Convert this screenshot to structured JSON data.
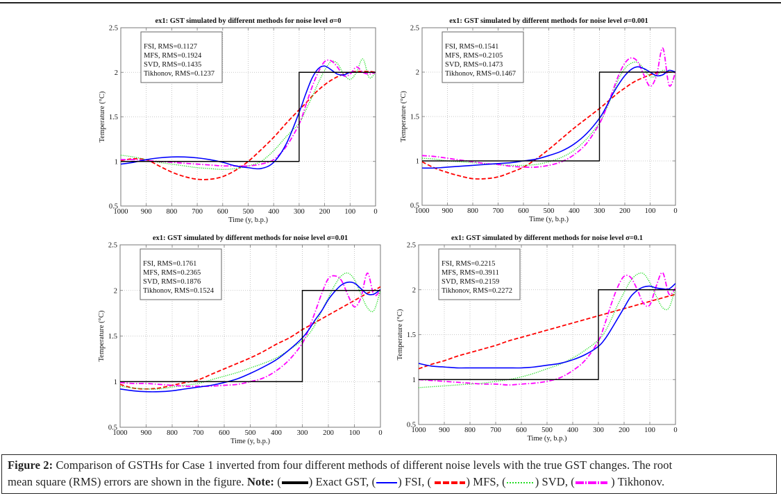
{
  "caption": {
    "figure_label": "Figure 2:",
    "line1_text": " Comparison of GSTHs for Case 1 inverted from four different methods of different noise levels with the true GST changes. The root",
    "line2_text": "mean square (RMS) errors are shown in the figure. ",
    "note_label": "Note:",
    "legend": [
      {
        "key": "exact",
        "label": "Exact GST,",
        "color": "#000000",
        "style": "solid"
      },
      {
        "key": "fsi",
        "label": "FSI,",
        "color": "#0000ff",
        "style": "solid"
      },
      {
        "key": "mfs",
        "label": "MFS,",
        "color": "#ff0000",
        "style": "dashed"
      },
      {
        "key": "svd",
        "label": "SVD,",
        "color": "#00dd00",
        "style": "dotted"
      },
      {
        "key": "tik",
        "label": "Tikhonov.",
        "color": "#ff00ff",
        "style": "dashdot"
      }
    ]
  },
  "colors": {
    "exact": "#000000",
    "fsi": "#0000ff",
    "mfs": "#ff0000",
    "svd": "#22dd22",
    "tik": "#ff00ff",
    "grid": "#b8b8b8",
    "axis": "#777777"
  },
  "chart_data": [
    {
      "type": "line",
      "title": "ex1: GST simulated by different methods for noise level σ=0",
      "xlabel": "Time (y, b.p.)",
      "ylabel": "Temperature (°C)",
      "xlim": [
        1000,
        0
      ],
      "ylim": [
        0.5,
        2.5
      ],
      "xticks": [
        "1000",
        "900",
        "800",
        "700",
        "600",
        "500",
        "400",
        "300",
        "200",
        "100",
        "0"
      ],
      "yticks": [
        "0.5",
        "1",
        "1.5",
        "2",
        "2.5"
      ],
      "grid": true,
      "rms_box": [
        "FSI,  RMS=0.1127",
        "MFS,  RMS=0.1924",
        "SVD,  RMS=0.1435",
        "Tikhonov,  RMS=0.1237"
      ],
      "rms_box_position": "top-left",
      "x": [
        1000,
        950,
        900,
        850,
        800,
        750,
        700,
        650,
        600,
        550,
        500,
        450,
        400,
        350,
        300,
        275,
        250,
        225,
        200,
        175,
        150,
        125,
        100,
        75,
        50,
        25,
        0
      ],
      "series": [
        {
          "name": "Exact GST",
          "key": "exact",
          "x": [
            1000,
            300,
            300,
            0
          ],
          "values": [
            1,
            1,
            2,
            2
          ]
        },
        {
          "name": "FSI",
          "key": "fsi",
          "values": [
            0.97,
            0.99,
            1.02,
            1.04,
            1.05,
            1.05,
            1.04,
            1.02,
            0.99,
            0.95,
            0.93,
            0.92,
            0.99,
            1.2,
            1.55,
            1.75,
            1.93,
            2.04,
            2.07,
            2.03,
            1.98,
            1.97,
            2.0,
            2.0,
            2.0,
            2.0,
            2.0
          ]
        },
        {
          "name": "MFS",
          "key": "mfs",
          "values": [
            1.01,
            1.03,
            1.02,
            0.95,
            0.88,
            0.83,
            0.8,
            0.8,
            0.83,
            0.9,
            1.0,
            1.13,
            1.27,
            1.43,
            1.58,
            1.65,
            1.73,
            1.8,
            1.86,
            1.91,
            1.95,
            1.98,
            2.0,
            2.01,
            2.01,
            2.01,
            2.0
          ]
        },
        {
          "name": "SVD",
          "key": "svd",
          "values": [
            1.07,
            1.05,
            1.02,
            0.99,
            0.97,
            0.95,
            0.93,
            0.92,
            0.91,
            0.92,
            0.95,
            1.0,
            1.12,
            1.28,
            1.43,
            1.57,
            1.72,
            1.88,
            2.02,
            2.12,
            2.1,
            1.98,
            1.92,
            2.0,
            2.15,
            1.94,
            2.0
          ]
        },
        {
          "name": "Tikhonov",
          "key": "tik",
          "values": [
            1.02,
            1.02,
            1.01,
            1.0,
            0.99,
            0.98,
            0.97,
            0.96,
            0.95,
            0.95,
            0.95,
            0.97,
            1.02,
            1.17,
            1.42,
            1.62,
            1.83,
            2.0,
            2.12,
            2.13,
            2.06,
            1.96,
            1.98,
            2.06,
            2.0,
            1.98,
            2.0
          ]
        }
      ]
    },
    {
      "type": "line",
      "title": "ex1: GST simulated by different methods for noise level σ=0.001",
      "xlabel": "Time (y, b.p.)",
      "ylabel": "Temperature (°C)",
      "xlim": [
        1000,
        0
      ],
      "ylim": [
        0.5,
        2.5
      ],
      "xticks": [
        "1000",
        "900",
        "800",
        "700",
        "600",
        "500",
        "400",
        "300",
        "200",
        "100",
        "0"
      ],
      "yticks": [
        "0.5",
        "1",
        "1.5",
        "2",
        "2.5"
      ],
      "grid": true,
      "rms_box": [
        "FSI,  RMS=0.1541",
        "MFS,  RMS=0.2105",
        "SVD,  RMS=0.1473",
        "Tikhonov,  RMS=0.1467"
      ],
      "rms_box_position": "top-left",
      "x": [
        1000,
        950,
        900,
        850,
        800,
        750,
        700,
        650,
        600,
        550,
        500,
        450,
        400,
        350,
        300,
        275,
        250,
        225,
        200,
        175,
        150,
        125,
        100,
        75,
        50,
        25,
        0
      ],
      "series": [
        {
          "name": "Exact GST",
          "key": "exact",
          "x": [
            1000,
            300,
            300,
            0
          ],
          "values": [
            1,
            1,
            2,
            2
          ]
        },
        {
          "name": "FSI",
          "key": "fsi",
          "values": [
            0.92,
            0.92,
            0.93,
            0.94,
            0.95,
            0.96,
            0.97,
            0.98,
            1.0,
            1.02,
            1.06,
            1.11,
            1.19,
            1.31,
            1.48,
            1.6,
            1.74,
            1.86,
            1.96,
            2.03,
            2.06,
            2.04,
            2.0,
            1.96,
            1.97,
            2.02,
            2.0
          ]
        },
        {
          "name": "MFS",
          "key": "mfs",
          "values": [
            0.99,
            0.92,
            0.87,
            0.83,
            0.8,
            0.8,
            0.82,
            0.87,
            0.93,
            1.02,
            1.13,
            1.25,
            1.37,
            1.48,
            1.59,
            1.65,
            1.71,
            1.77,
            1.82,
            1.87,
            1.91,
            1.94,
            1.97,
            1.99,
            2.0,
            2.0,
            2.0
          ]
        },
        {
          "name": "SVD",
          "key": "svd",
          "values": [
            1.03,
            1.02,
            1.0,
            0.99,
            0.98,
            0.97,
            0.96,
            0.95,
            0.95,
            0.96,
            0.99,
            1.04,
            1.12,
            1.25,
            1.43,
            1.57,
            1.74,
            1.92,
            2.04,
            2.1,
            2.11,
            2.04,
            1.95,
            1.96,
            2.02,
            2.0,
            2.0
          ]
        },
        {
          "name": "Tikhonov",
          "key": "tik",
          "values": [
            1.06,
            1.05,
            1.03,
            1.01,
            0.99,
            0.97,
            0.96,
            0.94,
            0.93,
            0.93,
            0.95,
            0.99,
            1.07,
            1.2,
            1.42,
            1.58,
            1.77,
            1.96,
            2.1,
            2.16,
            2.12,
            1.97,
            1.84,
            1.96,
            2.27,
            1.85,
            2.0
          ]
        }
      ]
    },
    {
      "type": "line",
      "title": "ex1: GST simulated by different methods for noise level σ=0.01",
      "xlabel": "Time (y, b.p.)",
      "ylabel": "Temperature (°C)",
      "xlim": [
        1000,
        0
      ],
      "ylim": [
        0.5,
        2.5
      ],
      "xticks": [
        "1000",
        "900",
        "800",
        "700",
        "600",
        "500",
        "400",
        "300",
        "200",
        "100",
        "0"
      ],
      "yticks": [
        "0.5",
        "1",
        "1.5",
        "2",
        "2.5"
      ],
      "grid": true,
      "rms_box": [
        "FSI,  RMS=0.1761",
        "MFS,  RMS=0.2365",
        "SVD,  RMS=0.1876",
        "Tikhonov,  RMS=0.1524"
      ],
      "rms_box_position": "top-left",
      "x": [
        1000,
        950,
        900,
        850,
        800,
        750,
        700,
        650,
        600,
        550,
        500,
        450,
        400,
        350,
        300,
        275,
        250,
        225,
        200,
        175,
        150,
        125,
        100,
        75,
        50,
        25,
        0
      ],
      "series": [
        {
          "name": "Exact GST",
          "key": "exact",
          "x": [
            1000,
            300,
            300,
            0
          ],
          "values": [
            1,
            1,
            2,
            2
          ]
        },
        {
          "name": "FSI",
          "key": "fsi",
          "values": [
            0.92,
            0.9,
            0.89,
            0.89,
            0.9,
            0.92,
            0.94,
            0.96,
            0.99,
            1.03,
            1.09,
            1.16,
            1.24,
            1.35,
            1.48,
            1.57,
            1.68,
            1.78,
            1.9,
            1.99,
            2.06,
            2.09,
            2.08,
            2.02,
            1.96,
            1.96,
            2.01
          ]
        },
        {
          "name": "MFS",
          "key": "mfs",
          "values": [
            0.97,
            0.93,
            0.92,
            0.93,
            0.96,
            0.99,
            1.02,
            1.08,
            1.14,
            1.2,
            1.26,
            1.33,
            1.41,
            1.48,
            1.57,
            1.61,
            1.65,
            1.69,
            1.73,
            1.77,
            1.81,
            1.85,
            1.89,
            1.93,
            1.97,
            2.0,
            2.04
          ]
        },
        {
          "name": "SVD",
          "key": "svd",
          "values": [
            0.95,
            0.93,
            0.92,
            0.92,
            0.94,
            0.96,
            0.98,
            1.02,
            1.06,
            1.1,
            1.15,
            1.2,
            1.26,
            1.35,
            1.45,
            1.52,
            1.63,
            1.78,
            1.92,
            2.06,
            2.16,
            2.19,
            2.12,
            1.96,
            1.81,
            1.78,
            2.0
          ]
        },
        {
          "name": "Tikhonov",
          "key": "tik",
          "values": [
            0.99,
            0.98,
            0.98,
            0.97,
            0.96,
            0.95,
            0.95,
            0.95,
            0.96,
            0.97,
            1.0,
            1.04,
            1.12,
            1.24,
            1.42,
            1.58,
            1.77,
            1.97,
            2.13,
            2.16,
            2.11,
            1.95,
            1.82,
            1.92,
            2.19,
            1.95,
            2.0
          ]
        }
      ]
    },
    {
      "type": "line",
      "title": "ex1: GST simulated by different methods for noise level σ=0.1",
      "xlabel": "Time (y, b.p.)",
      "ylabel": "Temperature (°C)",
      "xlim": [
        1000,
        0
      ],
      "ylim": [
        0.5,
        2.5
      ],
      "xticks": [
        "1000",
        "900",
        "800",
        "700",
        "600",
        "500",
        "400",
        "300",
        "200",
        "100",
        "0"
      ],
      "yticks": [
        "0.5",
        "1",
        "1.5",
        "2",
        "2.5"
      ],
      "grid": true,
      "rms_box": [
        "FSI,  RMS=0.2215",
        "MFS,  RMS=0.3911",
        "SVD,  RMS=0.2159",
        "Tikhonov,  RMS=0.2272"
      ],
      "rms_box_position": "top-left",
      "x": [
        1000,
        950,
        900,
        850,
        800,
        750,
        700,
        650,
        600,
        550,
        500,
        450,
        400,
        350,
        300,
        275,
        250,
        225,
        200,
        175,
        150,
        125,
        100,
        75,
        50,
        25,
        0
      ],
      "series": [
        {
          "name": "Exact GST",
          "key": "exact",
          "x": [
            1000,
            300,
            300,
            0
          ],
          "values": [
            1,
            1,
            2,
            2
          ]
        },
        {
          "name": "FSI",
          "key": "fsi",
          "values": [
            1.18,
            1.15,
            1.14,
            1.13,
            1.13,
            1.13,
            1.13,
            1.13,
            1.13,
            1.14,
            1.16,
            1.18,
            1.22,
            1.28,
            1.37,
            1.45,
            1.56,
            1.68,
            1.8,
            1.92,
            1.99,
            2.03,
            2.04,
            2.02,
            2.01,
            2.01,
            2.07
          ]
        },
        {
          "name": "MFS",
          "key": "mfs",
          "values": [
            1.12,
            1.17,
            1.21,
            1.26,
            1.3,
            1.34,
            1.38,
            1.43,
            1.47,
            1.51,
            1.55,
            1.59,
            1.63,
            1.67,
            1.71,
            1.73,
            1.75,
            1.77,
            1.79,
            1.81,
            1.83,
            1.85,
            1.87,
            1.89,
            1.91,
            1.93,
            1.95
          ]
        },
        {
          "name": "SVD",
          "key": "svd",
          "values": [
            0.91,
            0.92,
            0.93,
            0.94,
            0.95,
            0.96,
            0.98,
            1.0,
            1.03,
            1.07,
            1.12,
            1.17,
            1.24,
            1.33,
            1.44,
            1.53,
            1.67,
            1.83,
            1.97,
            2.1,
            2.17,
            2.18,
            2.08,
            1.93,
            1.8,
            1.8,
            2.02
          ]
        },
        {
          "name": "Tikhonov",
          "key": "tik",
          "values": [
            1.0,
            0.99,
            0.98,
            0.97,
            0.96,
            0.95,
            0.95,
            0.94,
            0.95,
            0.96,
            0.98,
            1.02,
            1.1,
            1.22,
            1.43,
            1.62,
            1.84,
            2.03,
            2.15,
            2.14,
            2.01,
            1.85,
            1.83,
            2.04,
            2.19,
            1.95,
            2.02
          ]
        }
      ]
    }
  ]
}
